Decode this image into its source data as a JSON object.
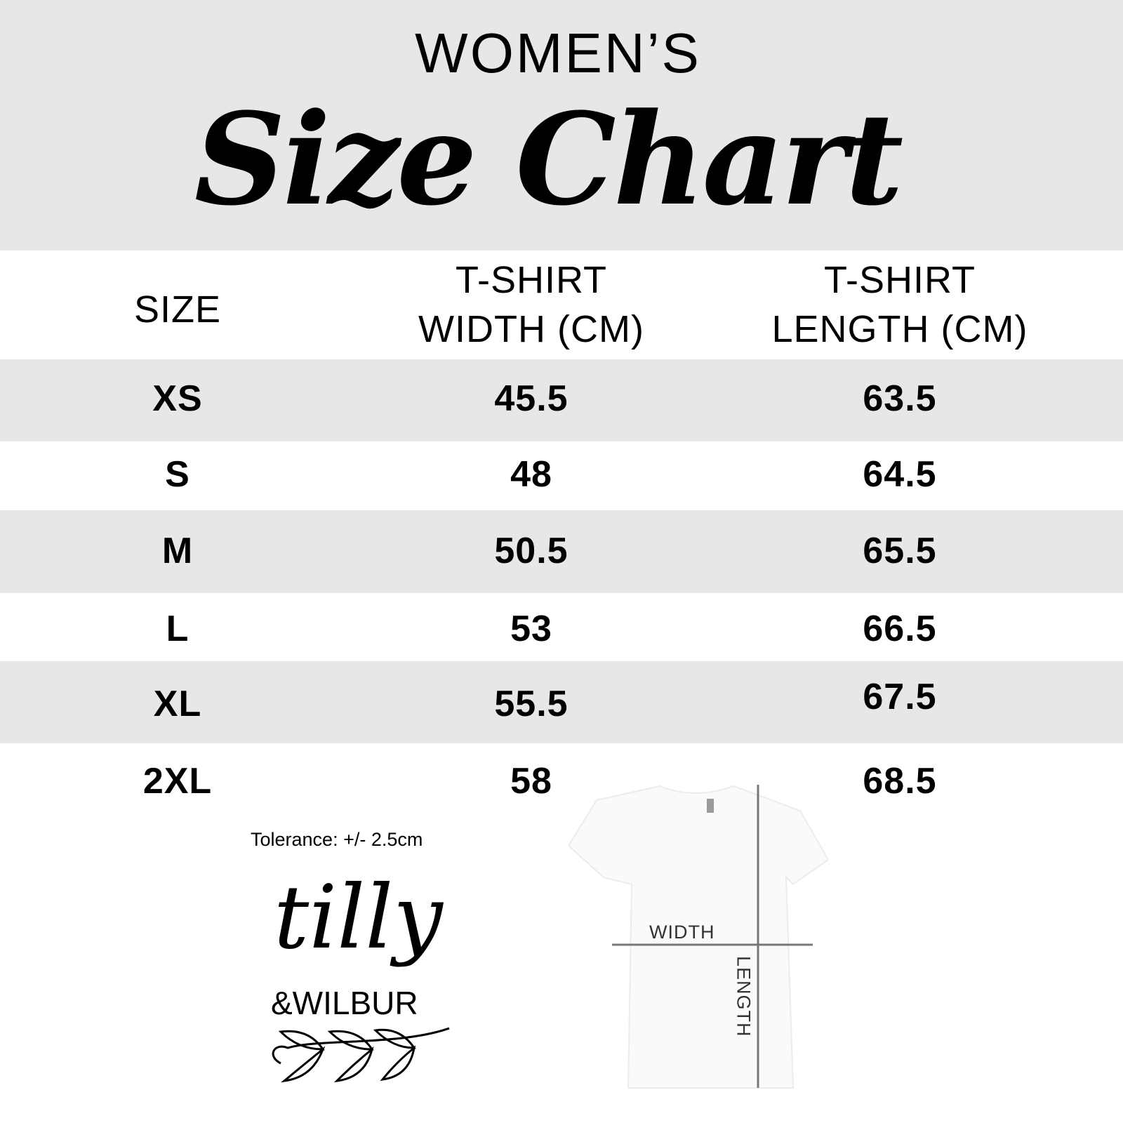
{
  "header": {
    "subtitle": "WOMEN’S",
    "title": "Size Chart"
  },
  "table": {
    "columns": [
      "SIZE",
      "T-SHIRT WIDTH (CM)",
      "T-SHIRT LENGTH (CM)"
    ],
    "column_lines": [
      [
        "SIZE"
      ],
      [
        "T-SHIRT",
        "WIDTH (CM)"
      ],
      [
        "T-SHIRT",
        "LENGTH (CM)"
      ]
    ],
    "rows": [
      {
        "size": "XS",
        "width": "45.5",
        "length": "63.5"
      },
      {
        "size": "S",
        "width": "48",
        "length": "64.5"
      },
      {
        "size": "M",
        "width": "50.5",
        "length": "65.5"
      },
      {
        "size": "L",
        "width": "53",
        "length": "66.5"
      },
      {
        "size": "XL",
        "width": "55.5",
        "length": "67.5"
      },
      {
        "size": "2XL",
        "width": "58",
        "length": "68.5"
      }
    ]
  },
  "tolerance": "Tolerance: +/- 2.5cm",
  "diagram": {
    "width_label": "WIDTH",
    "length_label": "LENGTH"
  },
  "logo": {
    "text": "tilly & WILBUR"
  },
  "colors": {
    "band": "#e6e7e8",
    "text": "#000000",
    "measure_line": "#77787b"
  }
}
